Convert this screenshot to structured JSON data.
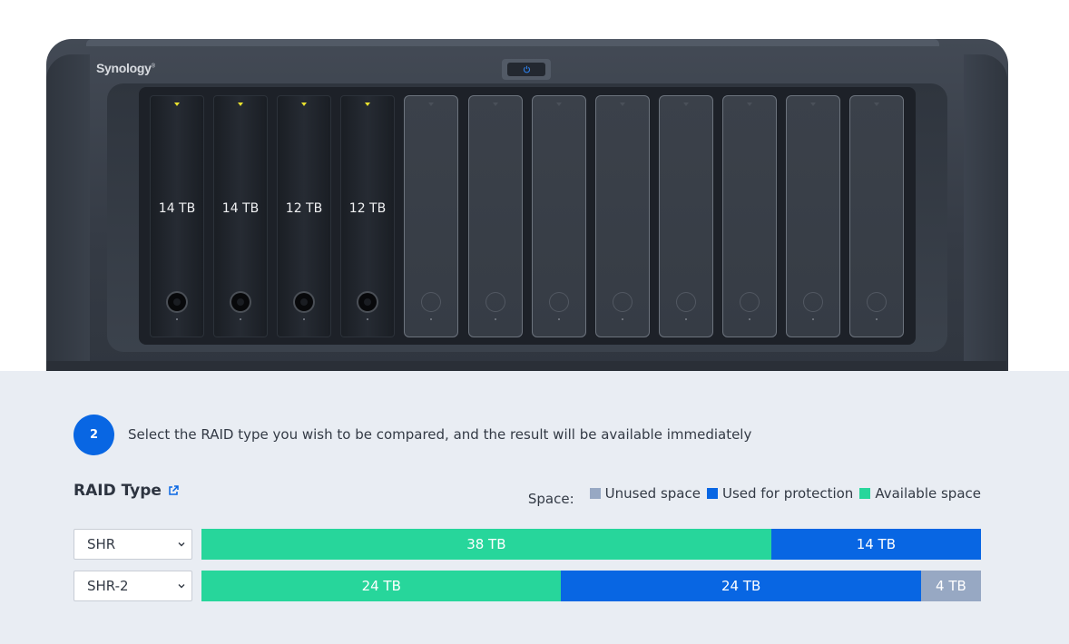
{
  "device": {
    "brand": "Synology",
    "brand_mark": "®",
    "power_icon": "power-icon",
    "bays": [
      {
        "label": "14 TB",
        "filled": true
      },
      {
        "label": "14 TB",
        "filled": true
      },
      {
        "label": "12 TB",
        "filled": true
      },
      {
        "label": "12 TB",
        "filled": true
      },
      {
        "label": "",
        "filled": false
      },
      {
        "label": "",
        "filled": false
      },
      {
        "label": "",
        "filled": false
      },
      {
        "label": "",
        "filled": false
      },
      {
        "label": "",
        "filled": false
      },
      {
        "label": "",
        "filled": false
      },
      {
        "label": "",
        "filled": false
      },
      {
        "label": "",
        "filled": false
      }
    ]
  },
  "step": {
    "number": "2",
    "text": "Select the RAID type you wish to be compared, and the result will be available immediately"
  },
  "raid": {
    "heading": "RAID Type",
    "heading_icon": "external-link-icon"
  },
  "legend": {
    "label": "Space:",
    "items": [
      {
        "name": "Unused space",
        "color": "#97a8c3"
      },
      {
        "name": "Used for protection",
        "color": "#0866e3"
      },
      {
        "name": "Available space",
        "color": "#27d69b"
      }
    ]
  },
  "colors": {
    "available": "#27d69b",
    "protection": "#0866e3",
    "unused": "#97a8c3",
    "accent": "#0866e3"
  },
  "rows": [
    {
      "raid_type": "SHR",
      "segments": [
        {
          "kind": "available",
          "label": "38 TB",
          "tb": 38
        },
        {
          "kind": "protection",
          "label": "14 TB",
          "tb": 14
        }
      ]
    },
    {
      "raid_type": "SHR-2",
      "segments": [
        {
          "kind": "available",
          "label": "24 TB",
          "tb": 24
        },
        {
          "kind": "protection",
          "label": "24 TB",
          "tb": 24
        },
        {
          "kind": "unused",
          "label": "4 TB",
          "tb": 4
        }
      ]
    }
  ]
}
